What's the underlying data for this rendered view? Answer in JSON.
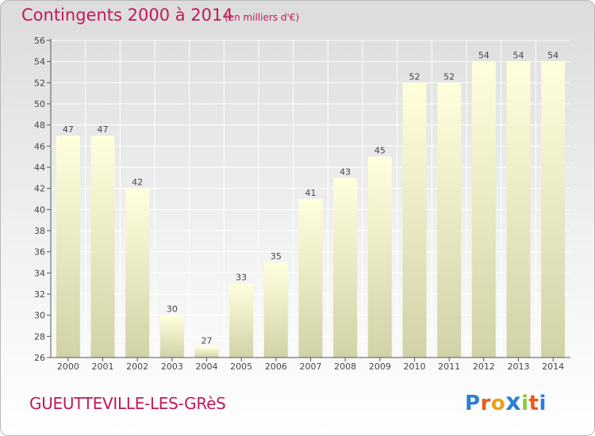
{
  "header": {
    "title": "Contingents 2000 à 2014",
    "subtitle": "(en milliers d'€)"
  },
  "footer": {
    "location": "GUEUTTEVILLE-LES-GRèS"
  },
  "logo": {
    "letters": [
      "P",
      "r",
      "o",
      "x",
      "i",
      "t",
      "i"
    ],
    "colors": [
      "#2b7fd6",
      "#e85c1c",
      "#e8a11c",
      "#2b7fd6",
      "#8cc63f",
      "#e85c1c",
      "#2b7fd6"
    ]
  },
  "chart_data": {
    "type": "bar",
    "categories": [
      "2000",
      "2001",
      "2002",
      "2003",
      "2004",
      "2005",
      "2006",
      "2007",
      "2008",
      "2009",
      "2010",
      "2011",
      "2012",
      "2013",
      "2014"
    ],
    "values": [
      47,
      47,
      42,
      30,
      27,
      33,
      35,
      41,
      43,
      45,
      52,
      52,
      54,
      54,
      54
    ],
    "data_labels": [
      "47",
      "47",
      "42",
      "30",
      "27",
      "33",
      "35",
      "41",
      "43",
      "45",
      "52",
      "52",
      "54",
      "54",
      "54"
    ],
    "ylim": [
      26,
      56
    ],
    "yticks": [
      26,
      28,
      30,
      32,
      34,
      36,
      38,
      40,
      42,
      44,
      46,
      48,
      50,
      52,
      54,
      56
    ],
    "grid": true,
    "bar_color_top": "#ffffdc",
    "bar_color_bottom": "#d2d2a8",
    "axis_color": "#555555",
    "grid_color": "#ffffff"
  }
}
